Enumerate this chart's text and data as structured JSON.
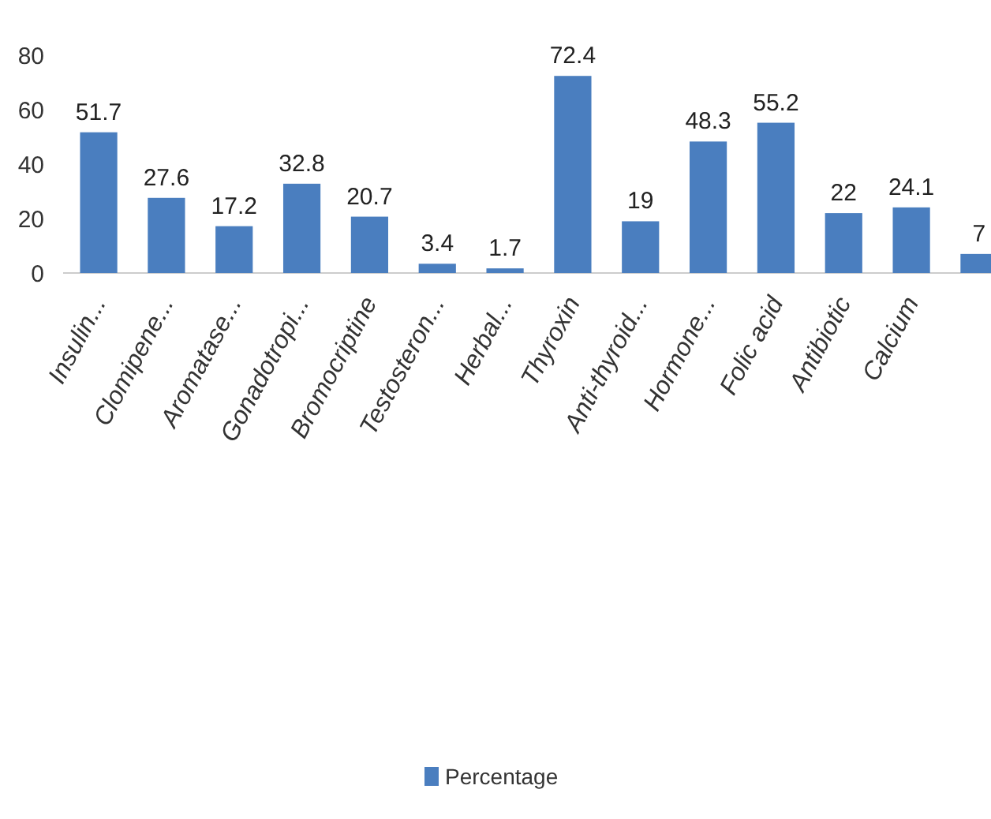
{
  "chart_data": {
    "type": "bar",
    "categories": [
      "Insulin...",
      "Clomipene...",
      "Aromatase...",
      "Gonadotropi...",
      "Bromocriptine",
      "Testosteron...",
      "Herbal...",
      "Thyroxin",
      "Anti-thyroid...",
      "Hormone...",
      "Folic acid",
      "Antibiotic",
      "Calcium",
      null
    ],
    "series": [
      {
        "name": "Percentage",
        "color": "#4a7ebf",
        "values": [
          51.7,
          27.6,
          17.2,
          32.8,
          20.7,
          3.4,
          1.7,
          72.4,
          19,
          48.3,
          55.2,
          22,
          24.1,
          7
        ]
      }
    ],
    "ylim": [
      0,
      80
    ],
    "yticks": [
      0,
      20,
      40,
      60,
      80
    ],
    "grid": false,
    "data_labels": true,
    "legend": "bottom"
  }
}
